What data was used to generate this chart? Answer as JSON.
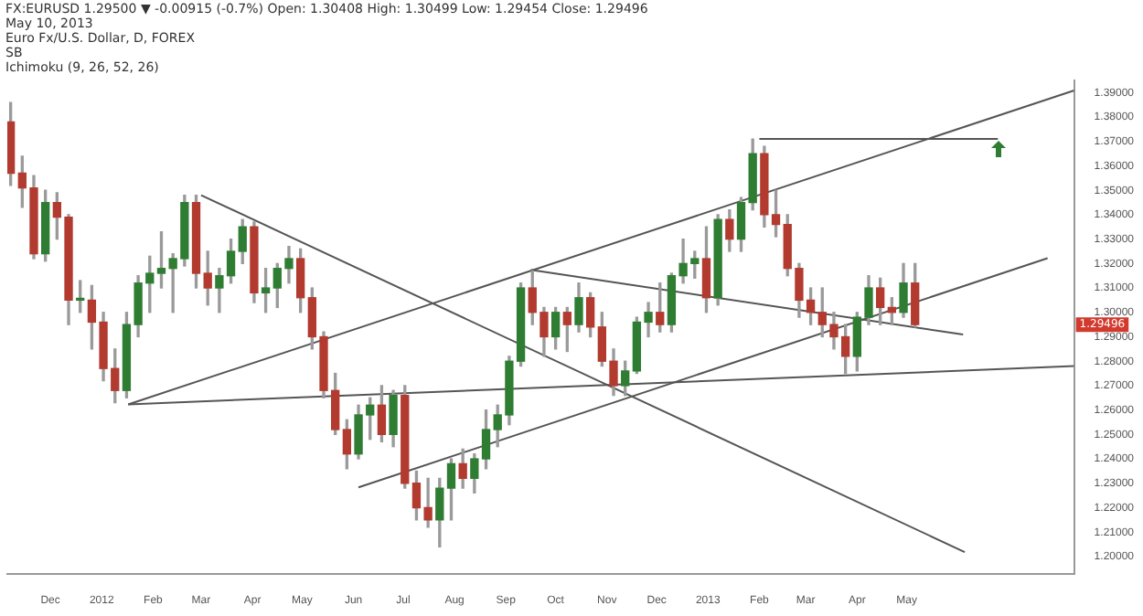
{
  "chart_data": {
    "type": "candlestick",
    "title": "FX:EURUSD 1.29500 ▼ -0.00915 (-0.7%) Open: 1.30408 High: 1.30499 Low: 1.29454 Close: 1.29496",
    "subtitle": "May 10, 2013",
    "annotations": [
      "Euro Fx/U.S. Dollar, D, FOREX",
      "SB",
      "Ichimoku (9, 26, 52, 26)",
      "1.29496"
    ],
    "x": [
      "2011-11-07",
      "2011-11-14",
      "2011-11-21",
      "2011-11-28",
      "2011-12-05",
      "2011-12-12",
      "2011-12-19",
      "2011-12-26",
      "2012-01-02",
      "2012-01-09",
      "2012-01-16",
      "2012-01-23",
      "2012-01-30",
      "2012-02-06",
      "2012-02-13",
      "2012-02-20",
      "2012-02-27",
      "2012-03-05",
      "2012-03-12",
      "2012-03-19",
      "2012-03-26",
      "2012-04-02",
      "2012-04-09",
      "2012-04-16",
      "2012-04-23",
      "2012-04-30",
      "2012-05-07",
      "2012-05-14",
      "2012-05-21",
      "2012-05-28",
      "2012-06-04",
      "2012-06-11",
      "2012-06-18",
      "2012-06-25",
      "2012-07-02",
      "2012-07-09",
      "2012-07-16",
      "2012-07-23",
      "2012-07-30",
      "2012-08-06",
      "2012-08-13",
      "2012-08-20",
      "2012-08-27",
      "2012-09-03",
      "2012-09-10",
      "2012-09-17",
      "2012-09-24",
      "2012-10-01",
      "2012-10-08",
      "2012-10-15",
      "2012-10-22",
      "2012-10-29",
      "2012-11-05",
      "2012-11-12",
      "2012-11-19",
      "2012-11-26",
      "2012-12-03",
      "2012-12-10",
      "2012-12-17",
      "2012-12-24",
      "2012-12-31",
      "2013-01-07",
      "2013-01-14",
      "2013-01-21",
      "2013-01-28",
      "2013-02-04",
      "2013-02-11",
      "2013-02-18",
      "2013-02-25",
      "2013-03-04",
      "2013-03-11",
      "2013-03-18",
      "2013-03-25",
      "2013-04-01",
      "2013-04-08",
      "2013-04-15",
      "2013-04-22",
      "2013-04-29",
      "2013-05-06"
    ],
    "ohlc": [
      [
        1.378,
        1.386,
        1.352,
        1.357
      ],
      [
        1.357,
        1.364,
        1.343,
        1.351
      ],
      [
        1.351,
        1.356,
        1.322,
        1.324
      ],
      [
        1.324,
        1.35,
        1.321,
        1.345
      ],
      [
        1.345,
        1.349,
        1.33,
        1.339
      ],
      [
        1.339,
        1.34,
        1.295,
        1.305
      ],
      [
        1.305,
        1.313,
        1.3,
        1.305
      ],
      [
        1.305,
        1.311,
        1.285,
        1.296
      ],
      [
        1.296,
        1.3,
        1.272,
        1.277
      ],
      [
        1.277,
        1.285,
        1.263,
        1.268
      ],
      [
        1.268,
        1.3,
        1.265,
        1.295
      ],
      [
        1.295,
        1.315,
        1.29,
        1.312
      ],
      [
        1.312,
        1.323,
        1.3,
        1.316
      ],
      [
        1.316,
        1.333,
        1.31,
        1.318
      ],
      [
        1.318,
        1.324,
        1.3,
        1.322
      ],
      [
        1.322,
        1.348,
        1.319,
        1.345
      ],
      [
        1.345,
        1.348,
        1.31,
        1.316
      ],
      [
        1.316,
        1.325,
        1.303,
        1.31
      ],
      [
        1.31,
        1.318,
        1.3,
        1.315
      ],
      [
        1.315,
        1.33,
        1.312,
        1.325
      ],
      [
        1.325,
        1.338,
        1.32,
        1.335
      ],
      [
        1.335,
        1.337,
        1.304,
        1.308
      ],
      [
        1.308,
        1.318,
        1.3,
        1.31
      ],
      [
        1.31,
        1.32,
        1.302,
        1.318
      ],
      [
        1.318,
        1.327,
        1.312,
        1.322
      ],
      [
        1.322,
        1.326,
        1.3,
        1.306
      ],
      [
        1.306,
        1.31,
        1.285,
        1.29
      ],
      [
        1.29,
        1.292,
        1.265,
        1.268
      ],
      [
        1.268,
        1.275,
        1.25,
        1.252
      ],
      [
        1.252,
        1.256,
        1.236,
        1.242
      ],
      [
        1.242,
        1.262,
        1.24,
        1.258
      ],
      [
        1.258,
        1.265,
        1.248,
        1.262
      ],
      [
        1.262,
        1.27,
        1.247,
        1.25
      ],
      [
        1.25,
        1.268,
        1.245,
        1.266
      ],
      [
        1.266,
        1.27,
        1.228,
        1.23
      ],
      [
        1.23,
        1.235,
        1.215,
        1.22
      ],
      [
        1.22,
        1.232,
        1.212,
        1.215
      ],
      [
        1.215,
        1.232,
        1.204,
        1.228
      ],
      [
        1.228,
        1.24,
        1.215,
        1.238
      ],
      [
        1.238,
        1.244,
        1.228,
        1.232
      ],
      [
        1.232,
        1.242,
        1.226,
        1.24
      ],
      [
        1.24,
        1.26,
        1.236,
        1.252
      ],
      [
        1.252,
        1.262,
        1.245,
        1.258
      ],
      [
        1.258,
        1.282,
        1.254,
        1.28
      ],
      [
        1.28,
        1.312,
        1.278,
        1.31
      ],
      [
        1.31,
        1.317,
        1.295,
        1.3
      ],
      [
        1.3,
        1.302,
        1.282,
        1.29
      ],
      [
        1.29,
        1.302,
        1.285,
        1.3
      ],
      [
        1.3,
        1.302,
        1.284,
        1.295
      ],
      [
        1.295,
        1.312,
        1.292,
        1.306
      ],
      [
        1.306,
        1.308,
        1.29,
        1.294
      ],
      [
        1.294,
        1.3,
        1.278,
        1.28
      ],
      [
        1.28,
        1.285,
        1.266,
        1.27
      ],
      [
        1.27,
        1.28,
        1.266,
        1.276
      ],
      [
        1.276,
        1.298,
        1.275,
        1.296
      ],
      [
        1.296,
        1.304,
        1.29,
        1.3
      ],
      [
        1.3,
        1.312,
        1.292,
        1.295
      ],
      [
        1.295,
        1.316,
        1.292,
        1.315
      ],
      [
        1.315,
        1.33,
        1.312,
        1.32
      ],
      [
        1.32,
        1.325,
        1.314,
        1.322
      ],
      [
        1.322,
        1.335,
        1.3,
        1.306
      ],
      [
        1.306,
        1.34,
        1.303,
        1.338
      ],
      [
        1.338,
        1.342,
        1.325,
        1.33
      ],
      [
        1.33,
        1.347,
        1.325,
        1.345
      ],
      [
        1.345,
        1.371,
        1.342,
        1.365
      ],
      [
        1.365,
        1.368,
        1.335,
        1.34
      ],
      [
        1.34,
        1.35,
        1.331,
        1.336
      ],
      [
        1.336,
        1.34,
        1.315,
        1.318
      ],
      [
        1.318,
        1.32,
        1.298,
        1.305
      ],
      [
        1.305,
        1.31,
        1.295,
        1.3
      ],
      [
        1.3,
        1.31,
        1.29,
        1.295
      ],
      [
        1.295,
        1.3,
        1.285,
        1.29
      ],
      [
        1.29,
        1.295,
        1.275,
        1.282
      ],
      [
        1.282,
        1.3,
        1.276,
        1.298
      ],
      [
        1.298,
        1.315,
        1.295,
        1.31
      ],
      [
        1.31,
        1.314,
        1.295,
        1.302
      ],
      [
        1.302,
        1.306,
        1.295,
        1.3
      ],
      [
        1.3,
        1.32,
        1.298,
        1.312
      ],
      [
        1.312,
        1.32,
        1.294,
        1.295
      ]
    ],
    "series": [
      {
        "type": "line",
        "color": "#555555",
        "x": [
          "2012-01-17",
          "2013-08-10"
        ],
        "values": [
          1.2623,
          1.278
        ]
      },
      {
        "type": "line",
        "color": "#555555",
        "x": [
          "2012-01-17",
          "2013-08-10"
        ],
        "values": [
          1.2623,
          1.3909
        ]
      },
      {
        "type": "line",
        "color": "#555555",
        "x": [
          "2012-03-01",
          "2013-06-05"
        ],
        "values": [
          1.348,
          1.2018
        ]
      },
      {
        "type": "line",
        "color": "#555555",
        "x": [
          "2012-06-04",
          "2013-07-25"
        ],
        "values": [
          1.2283,
          1.3222
        ]
      },
      {
        "type": "line",
        "color": "#555555",
        "x": [
          "2012-09-16",
          "2013-06-04"
        ],
        "values": [
          1.3174,
          1.2909
        ]
      },
      {
        "type": "line",
        "color": "#555555",
        "x": [
          "2013-02-01",
          "2013-06-25"
        ],
        "values": [
          1.371,
          1.371
        ]
      }
    ],
    "xlim": [
      "2011-11-05",
      "2013-08-10"
    ],
    "xticks": [
      {
        "value": "2011-12-01",
        "label": "Dec"
      },
      {
        "value": "2012-01-01",
        "label": "2012"
      },
      {
        "value": "2012-02-01",
        "label": "Feb"
      },
      {
        "value": "2012-03-01",
        "label": "Mar"
      },
      {
        "value": "2012-04-01",
        "label": "Apr"
      },
      {
        "value": "2012-05-01",
        "label": "May"
      },
      {
        "value": "2012-06-01",
        "label": "Jun"
      },
      {
        "value": "2012-07-01",
        "label": "Jul"
      },
      {
        "value": "2012-08-01",
        "label": "Aug"
      },
      {
        "value": "2012-09-01",
        "label": "Sep"
      },
      {
        "value": "2012-10-01",
        "label": "Oct"
      },
      {
        "value": "2012-11-01",
        "label": "Nov"
      },
      {
        "value": "2012-12-01",
        "label": "Dec"
      },
      {
        "value": "2013-01-01",
        "label": "2013"
      },
      {
        "value": "2013-02-01",
        "label": "Feb"
      },
      {
        "value": "2013-03-01",
        "label": "Mar"
      },
      {
        "value": "2013-04-01",
        "label": "Apr"
      },
      {
        "value": "2013-05-01",
        "label": "May"
      }
    ],
    "ylim": [
      1.193,
      1.395
    ],
    "yticks": [
      {
        "value": 1.2,
        "label": "1.20000"
      },
      {
        "value": 1.21,
        "label": "1.21000"
      },
      {
        "value": 1.22,
        "label": "1.22000"
      },
      {
        "value": 1.23,
        "label": "1.23000"
      },
      {
        "value": 1.24,
        "label": "1.24000"
      },
      {
        "value": 1.25,
        "label": "1.25000"
      },
      {
        "value": 1.26,
        "label": "1.26000"
      },
      {
        "value": 1.27,
        "label": "1.27000"
      },
      {
        "value": 1.28,
        "label": "1.28000"
      },
      {
        "value": 1.29,
        "label": "1.29000"
      },
      {
        "value": 1.3,
        "label": "1.30000"
      },
      {
        "value": 1.31,
        "label": "1.31000"
      },
      {
        "value": 1.32,
        "label": "1.32000"
      },
      {
        "value": 1.33,
        "label": "1.33000"
      },
      {
        "value": 1.34,
        "label": "1.34000"
      },
      {
        "value": 1.35,
        "label": "1.35000"
      },
      {
        "value": 1.36,
        "label": "1.36000"
      },
      {
        "value": 1.37,
        "label": "1.37000"
      },
      {
        "value": 1.38,
        "label": "1.38000"
      },
      {
        "value": 1.39,
        "label": "1.39000"
      }
    ]
  }
}
